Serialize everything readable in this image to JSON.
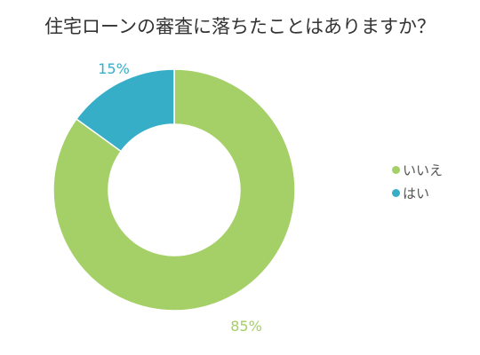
{
  "chart_data": {
    "type": "pie",
    "title": "住宅ローンの審査に落ちたことはありますか？",
    "categories": [
      "いいえ",
      "はい"
    ],
    "values": [
      85,
      15
    ],
    "labels": [
      "85%",
      "15%"
    ],
    "colors": [
      "#a5cf67",
      "#37aec8"
    ],
    "legend_position": "right"
  }
}
